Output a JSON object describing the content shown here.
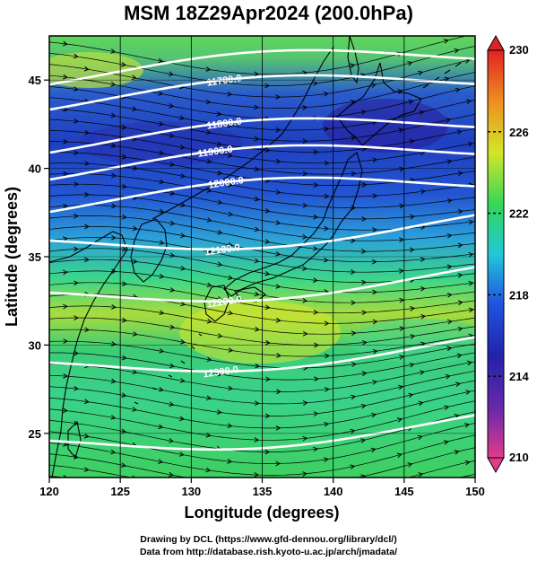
{
  "title": "MSM 18Z29Apr2024 (200.0hPa)",
  "axes": {
    "xlabel": "Longitude (degrees)",
    "ylabel": "Latitude  (degrees)",
    "lon_range": [
      120,
      150
    ],
    "lat_range": [
      22.5,
      47.5
    ],
    "lon_ticks": [
      "120",
      "125",
      "130",
      "135",
      "140",
      "145",
      "150"
    ],
    "lat_ticks": [
      "25",
      "30",
      "35",
      "40",
      "45"
    ]
  },
  "colorbar": {
    "range": [
      210,
      230
    ],
    "tick_labels": [
      "230",
      "226",
      "222",
      "218",
      "214",
      "210"
    ],
    "colors": [
      "#e23c8c",
      "#2222aa",
      "#1f55e0",
      "#22c8d8",
      "#33d65a",
      "#d4e628",
      "#f08a20",
      "#e02222"
    ]
  },
  "contour_labels": [
    "11700.0",
    "11800.0",
    "11900.0",
    "12000.0",
    "12100.0",
    "12200.0",
    "12300.0"
  ],
  "credits": {
    "line1": "Drawing by DCL (https://www.gfd-dennou.org/library/dcl/)",
    "line2": "Data from http://database.rish.kyoto-u.ac.jp/arch/jmadata/"
  }
}
